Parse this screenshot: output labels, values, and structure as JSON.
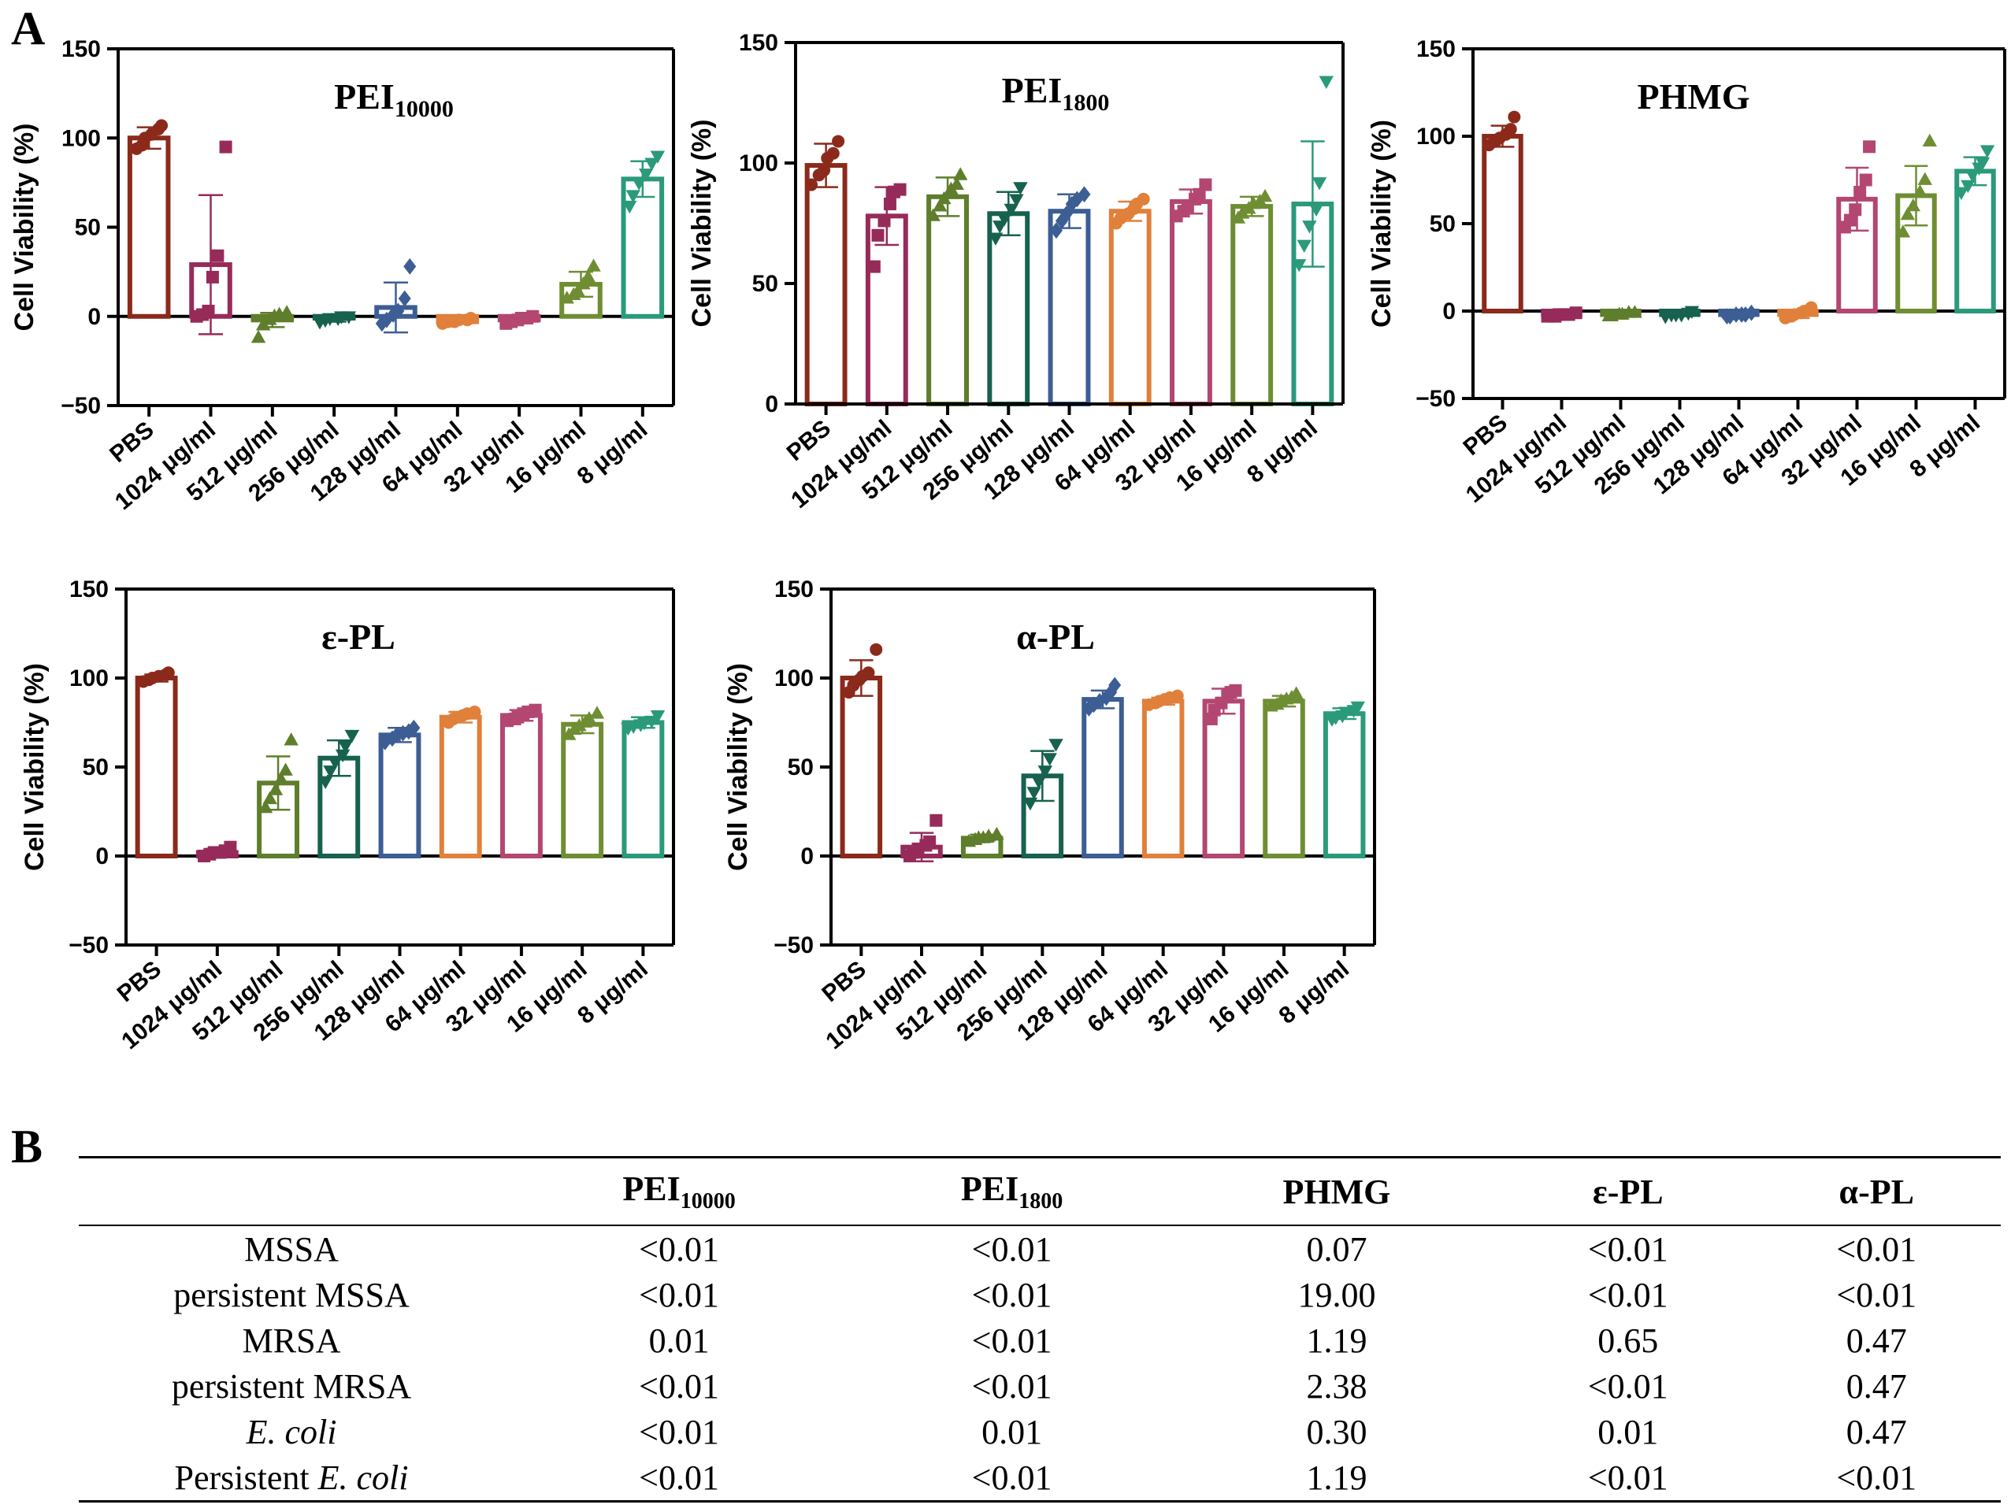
{
  "panel_a": {
    "label": "A"
  },
  "panel_b": {
    "label": "B",
    "headers": [
      {
        "base": "PEI",
        "sub": "10000"
      },
      {
        "base": "PEI",
        "sub": "1800"
      },
      {
        "base": "PHMG"
      },
      {
        "base": "ε-PL"
      },
      {
        "base": "α-PL"
      }
    ],
    "rows": [
      {
        "label": "MSSA",
        "values": [
          "<0.01",
          "<0.01",
          "0.07",
          "<0.01",
          "<0.01"
        ]
      },
      {
        "label": "persistent MSSA",
        "values": [
          "<0.01",
          "<0.01",
          "19.00",
          "<0.01",
          "<0.01"
        ]
      },
      {
        "label": "MRSA",
        "values": [
          "0.01",
          "<0.01",
          "1.19",
          "0.65",
          "0.47"
        ]
      },
      {
        "label": "persistent MRSA",
        "values": [
          "<0.01",
          "<0.01",
          "2.38",
          "<0.01",
          "0.47"
        ]
      },
      {
        "label": "E. coli",
        "values": [
          "<0.01",
          "0.01",
          "0.30",
          "0.01",
          "0.47"
        ]
      },
      {
        "label_prefix": "Persistent ",
        "label_italic": "E. coli",
        "values": [
          "<0.01",
          "<0.01",
          "1.19",
          "<0.01",
          "<0.01"
        ]
      }
    ]
  },
  "chart_data": [
    {
      "type": "bar",
      "title": "PEI",
      "title_sub": "10000",
      "ylabel": "Cell Viability (%)",
      "xlabel": "",
      "ylim": [
        -50,
        150
      ],
      "yticks": [
        -50,
        0,
        50,
        100,
        150
      ],
      "categories": [
        "PBS",
        "1024 μg/ml",
        "512 μg/ml",
        "256 μg/ml",
        "128 μg/ml",
        "64 μg/ml",
        "32 μg/ml",
        "16 μg/ml",
        "8 μg/ml"
      ],
      "values": [
        100,
        29,
        -2,
        -1,
        5,
        -3,
        -2,
        18,
        77
      ],
      "errors": [
        6,
        39,
        4,
        2,
        14,
        1,
        2,
        7,
        10
      ],
      "points": [
        [
          94,
          96,
          100,
          102,
          105,
          107
        ],
        [
          0,
          1,
          3,
          22,
          34,
          95
        ],
        [
          -12,
          -5,
          -2,
          0,
          1,
          2
        ],
        [
          -3,
          -2,
          -1,
          -1,
          0,
          0
        ],
        [
          -4,
          -2,
          1,
          3,
          10,
          28
        ],
        [
          -4,
          -3,
          -3,
          -2,
          -2,
          -1
        ],
        [
          -4,
          -3,
          -2,
          -1,
          -1,
          0
        ],
        [
          10,
          12,
          14,
          18,
          22,
          28
        ],
        [
          62,
          68,
          75,
          80,
          86,
          90
        ]
      ],
      "colors": [
        "#8B2A1B",
        "#962B5A",
        "#5E7E2C",
        "#17614F",
        "#3C5E94",
        "#E0803A",
        "#B34772",
        "#6F8E33",
        "#2A9A7B"
      ],
      "markers": [
        "circle",
        "square",
        "triangle",
        "invtriangle",
        "diamond",
        "circle",
        "square",
        "triangle",
        "invtriangle"
      ]
    },
    {
      "type": "bar",
      "title": "PEI",
      "title_sub": "1800",
      "ylabel": "Cell Viability (%)",
      "xlabel": "",
      "ylim": [
        0,
        150
      ],
      "yticks": [
        0,
        50,
        100,
        150
      ],
      "categories": [
        "PBS",
        "1024 μg/ml",
        "512 μg/ml",
        "256 μg/ml",
        "128 μg/ml",
        "64 μg/ml",
        "32 μg/ml",
        "16 μg/ml",
        "8 μg/ml"
      ],
      "values": [
        99,
        78,
        86,
        79,
        80,
        80,
        84,
        82,
        83
      ],
      "errors": [
        9,
        12,
        8,
        9,
        7,
        4,
        5,
        4,
        26
      ],
      "points": [
        [
          91,
          95,
          97,
          102,
          104,
          109
        ],
        [
          57,
          70,
          76,
          83,
          88,
          89
        ],
        [
          78,
          82,
          85,
          89,
          91,
          95
        ],
        [
          69,
          74,
          77,
          81,
          85,
          90
        ],
        [
          72,
          76,
          79,
          83,
          85,
          87
        ],
        [
          75,
          77,
          79,
          81,
          83,
          85
        ],
        [
          78,
          80,
          82,
          85,
          87,
          91
        ],
        [
          77,
          79,
          81,
          83,
          84,
          86
        ],
        [
          58,
          66,
          74,
          81,
          92,
          134
        ]
      ],
      "colors": [
        "#8B2A1B",
        "#962B5A",
        "#5E7E2C",
        "#17614F",
        "#3C5E94",
        "#E0803A",
        "#B34772",
        "#6F8E33",
        "#2A9A7B"
      ],
      "markers": [
        "circle",
        "square",
        "triangle",
        "invtriangle",
        "diamond",
        "circle",
        "square",
        "triangle",
        "invtriangle"
      ]
    },
    {
      "type": "bar",
      "title": "PHMG",
      "title_sub": "",
      "ylabel": "Cell Viability (%)",
      "xlabel": "",
      "ylim": [
        -50,
        150
      ],
      "yticks": [
        -50,
        0,
        50,
        100,
        150
      ],
      "categories": [
        "PBS",
        "1024 μg/ml",
        "512 μg/ml",
        "256 μg/ml",
        "128 μg/ml",
        "64 μg/ml",
        "32 μg/ml",
        "16 μg/ml",
        "8 μg/ml"
      ],
      "values": [
        100,
        -2,
        -2,
        -2,
        -2,
        -2,
        64,
        66,
        80
      ],
      "errors": [
        6,
        1,
        1,
        1,
        1,
        2,
        18,
        17,
        8
      ],
      "points": [
        [
          95,
          97,
          99,
          101,
          104,
          111
        ],
        [
          -3,
          -3,
          -2,
          -2,
          -2,
          -1
        ],
        [
          -3,
          -3,
          -2,
          -2,
          -1,
          -1
        ],
        [
          -3,
          -2,
          -2,
          -2,
          -1,
          0
        ],
        [
          -3,
          -3,
          -2,
          -2,
          -2,
          -1
        ],
        [
          -4,
          -3,
          -2,
          -1,
          0,
          2
        ],
        [
          48,
          52,
          58,
          68,
          75,
          94
        ],
        [
          45,
          55,
          60,
          68,
          75,
          97
        ],
        [
          68,
          72,
          78,
          82,
          85,
          92
        ]
      ],
      "colors": [
        "#8B2A1B",
        "#962B5A",
        "#5E7E2C",
        "#17614F",
        "#3C5E94",
        "#E0803A",
        "#B34772",
        "#6F8E33",
        "#2A9A7B"
      ],
      "markers": [
        "circle",
        "square",
        "triangle",
        "invtriangle",
        "diamond",
        "circle",
        "square",
        "triangle",
        "invtriangle"
      ]
    },
    {
      "type": "bar",
      "title": "ε-PL",
      "title_sub": "",
      "ylabel": "Cell Viability (%)",
      "xlabel": "",
      "ylim": [
        -50,
        150
      ],
      "yticks": [
        -50,
        0,
        50,
        100,
        150
      ],
      "categories": [
        "PBS",
        "1024 μg/ml",
        "512 μg/ml",
        "256 μg/ml",
        "128 μg/ml",
        "64 μg/ml",
        "32 μg/ml",
        "16 μg/ml",
        "8 μg/ml"
      ],
      "values": [
        100,
        2,
        41,
        55,
        68,
        78,
        79,
        74,
        75
      ],
      "errors": [
        2,
        2,
        15,
        10,
        4,
        3,
        3,
        5,
        3
      ],
      "points": [
        [
          98,
          99,
          100,
          101,
          102,
          103
        ],
        [
          0,
          1,
          2,
          2,
          3,
          5
        ],
        [
          27,
          32,
          37,
          43,
          48,
          65
        ],
        [
          42,
          48,
          53,
          57,
          62,
          68
        ],
        [
          64,
          66,
          68,
          69,
          70,
          72
        ],
        [
          75,
          77,
          78,
          79,
          80,
          81
        ],
        [
          76,
          77,
          78,
          80,
          81,
          82
        ],
        [
          68,
          71,
          73,
          75,
          77,
          80
        ],
        [
          72,
          73,
          74,
          75,
          76,
          79
        ]
      ],
      "colors": [
        "#8B2A1B",
        "#962B5A",
        "#5E7E2C",
        "#17614F",
        "#3C5E94",
        "#E0803A",
        "#B34772",
        "#6F8E33",
        "#2A9A7B"
      ],
      "markers": [
        "circle",
        "square",
        "triangle",
        "invtriangle",
        "diamond",
        "circle",
        "square",
        "triangle",
        "invtriangle"
      ]
    },
    {
      "type": "bar",
      "title": "α-PL",
      "title_sub": "",
      "ylabel": "Cell Viability (%)",
      "xlabel": "",
      "ylim": [
        -50,
        150
      ],
      "yticks": [
        -50,
        0,
        50,
        100,
        150
      ],
      "categories": [
        "PBS",
        "1024 μg/ml",
        "512 μg/ml",
        "256 μg/ml",
        "128 μg/ml",
        "64 μg/ml",
        "32 μg/ml",
        "16 μg/ml",
        "8 μg/ml"
      ],
      "values": [
        100,
        5,
        10,
        45,
        88,
        87,
        87,
        87,
        80
      ],
      "errors": [
        10,
        8,
        2,
        14,
        5,
        2,
        7,
        3,
        3
      ],
      "points": [
        [
          92,
          96,
          99,
          101,
          103,
          116
        ],
        [
          0,
          2,
          4,
          6,
          8,
          20
        ],
        [
          8,
          9,
          10,
          10,
          11,
          12
        ],
        [
          30,
          36,
          42,
          48,
          55,
          63
        ],
        [
          83,
          85,
          87,
          89,
          92,
          96
        ],
        [
          85,
          86,
          87,
          88,
          89,
          90
        ],
        [
          77,
          82,
          86,
          90,
          92,
          93
        ],
        [
          84,
          85,
          87,
          88,
          89,
          91
        ],
        [
          77,
          78,
          79,
          81,
          82,
          84
        ]
      ],
      "colors": [
        "#8B2A1B",
        "#962B5A",
        "#5E7E2C",
        "#17614F",
        "#3C5E94",
        "#E0803A",
        "#B34772",
        "#6F8E33",
        "#2A9A7B"
      ],
      "markers": [
        "circle",
        "square",
        "triangle",
        "invtriangle",
        "diamond",
        "circle",
        "square",
        "triangle",
        "invtriangle"
      ]
    }
  ]
}
